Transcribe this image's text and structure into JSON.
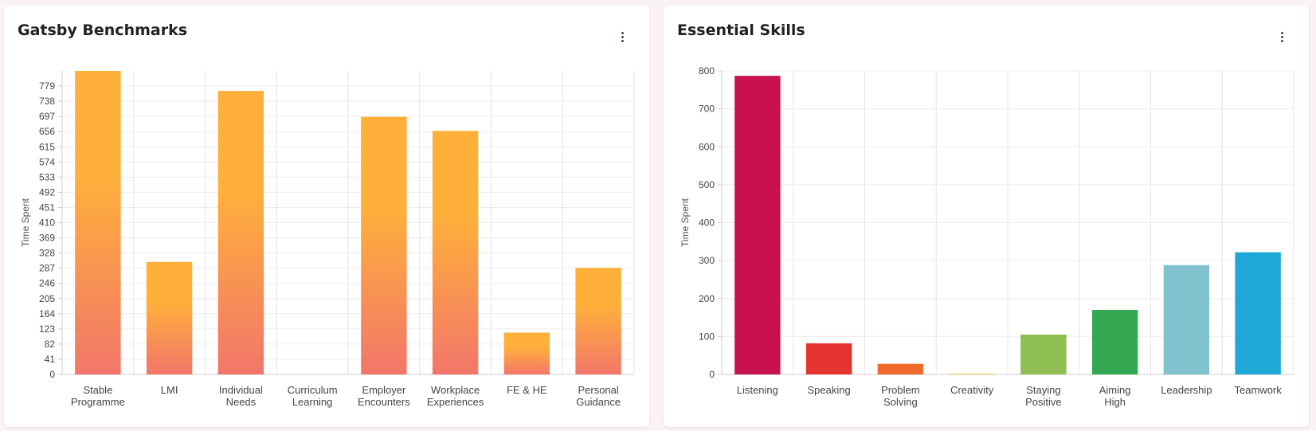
{
  "cards": [
    {
      "title": "Gatsby Benchmarks",
      "chart_data": {
        "type": "bar",
        "title": "Gatsby Benchmarks",
        "ylabel": "Time Spent",
        "xlabel": "",
        "categories": [
          [
            "Stable",
            "Programme"
          ],
          [
            "LMI"
          ],
          [
            "Individual",
            "Needs"
          ],
          [
            "Curriculum",
            "Learning"
          ],
          [
            "Employer",
            "Encounters"
          ],
          [
            "Workplace",
            "Experiences"
          ],
          [
            "FE & HE"
          ],
          [
            "Personal",
            "Guidance"
          ]
        ],
        "values": [
          820,
          304,
          766,
          0,
          696,
          658,
          113,
          288
        ],
        "yticks": [
          0,
          41,
          82,
          123,
          164,
          205,
          246,
          287,
          328,
          369,
          410,
          451,
          492,
          533,
          574,
          615,
          656,
          697,
          738,
          779
        ],
        "ylim": [
          0,
          820
        ],
        "grid": true,
        "gradient": [
          "#ffb03b",
          "#f2766a"
        ]
      }
    },
    {
      "title": "Essential Skills",
      "chart_data": {
        "type": "bar",
        "title": "Essential Skills",
        "ylabel": "Time Spent",
        "xlabel": "",
        "categories": [
          [
            "Listening"
          ],
          [
            "Speaking"
          ],
          [
            "Problem",
            "Solving"
          ],
          [
            "Creativity"
          ],
          [
            "Staying",
            "Positive"
          ],
          [
            "Aiming",
            "High"
          ],
          [
            "Leadership"
          ],
          [
            "Teamwork"
          ]
        ],
        "values": [
          787,
          82,
          28,
          2,
          105,
          170,
          288,
          322
        ],
        "yticks": [
          0,
          100,
          200,
          300,
          400,
          500,
          600,
          700,
          800
        ],
        "ylim": [
          0,
          800
        ],
        "grid": true,
        "colors": [
          "#c8114f",
          "#e3342f",
          "#f06a2d",
          "#f2c94c",
          "#8fbf52",
          "#34a853",
          "#80c3cf",
          "#1ea8d8"
        ]
      }
    }
  ]
}
